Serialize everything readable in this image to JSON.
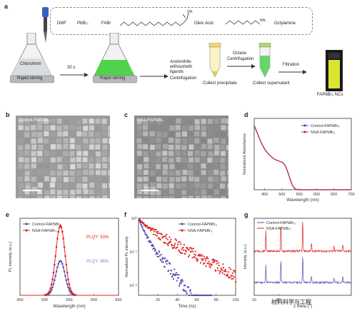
{
  "panel_a": {
    "label": "a",
    "reagents": [
      "DMF",
      "PbBr₂",
      "FABr",
      "Oleic Acid",
      "Octylamine"
    ],
    "oh_text": "OH",
    "nh2_text": "NH₂",
    "flask1_label": "Chloroform",
    "stir1_label": "Rapid stirring",
    "time_label": "30 s",
    "stir2_label": "Rapid stirring",
    "step1_text": [
      "Acetonitrile",
      "without/with",
      "ligands",
      "Centrifugation"
    ],
    "collect1": "Collect precipitate",
    "step2_text": [
      "Octane",
      "Centrifugation"
    ],
    "collect2": "Collect supernatant",
    "step3_text": "Filtration",
    "product": "FAPbBr₃ NCs"
  },
  "panel_b": {
    "label": "b",
    "caption": "Control-FAPbBr₃",
    "scale": "50 nm"
  },
  "panel_c": {
    "label": "c",
    "caption": "NSA-FAPbBr₃",
    "scale": "50 nm"
  },
  "labels": {
    "d": "d",
    "e": "e",
    "f": "f",
    "g": "g"
  },
  "plqy": {
    "nsa": "PLQY: 93%",
    "control": "PLQY: 46%"
  },
  "watermark": "材料科学与工程",
  "colors": {
    "control": "#5a4fb0",
    "nsa": "#e02525",
    "nsa_light": "#f07070",
    "control_light": "#8a80d0",
    "flask_green": "#52d24a",
    "vial_yellow": "#e6ea3a"
  },
  "chart_data": [
    {
      "type": "line",
      "panel": "d",
      "xlabel": "Wavelength (nm)",
      "ylabel": "Normalized Absorbance",
      "xlim": [
        420,
        700
      ],
      "ylim": [
        0,
        1
      ],
      "xticks": [
        450,
        500,
        550,
        600,
        650,
        700
      ],
      "series": [
        {
          "name": "Control-FAPbBr₃",
          "x": [
            420,
            430,
            440,
            450,
            460,
            470,
            480,
            490,
            495,
            500,
            505,
            510,
            515,
            520,
            525,
            530,
            535,
            540,
            545,
            550,
            600,
            650,
            700
          ],
          "y": [
            0.98,
            0.85,
            0.72,
            0.62,
            0.55,
            0.5,
            0.46,
            0.44,
            0.43,
            0.42,
            0.4,
            0.36,
            0.3,
            0.22,
            0.14,
            0.07,
            0.03,
            0.01,
            0.0,
            0.0,
            0.0,
            0.0,
            0.0
          ]
        },
        {
          "name": "NSA-FAPbBr₃",
          "x": [
            420,
            430,
            440,
            450,
            460,
            470,
            480,
            490,
            495,
            500,
            505,
            510,
            515,
            520,
            525,
            530,
            535,
            540,
            545,
            550,
            600,
            650,
            700
          ],
          "y": [
            0.98,
            0.85,
            0.72,
            0.62,
            0.55,
            0.5,
            0.46,
            0.44,
            0.43,
            0.42,
            0.4,
            0.36,
            0.3,
            0.22,
            0.14,
            0.07,
            0.03,
            0.01,
            0.0,
            0.0,
            0.0,
            0.0,
            0.0
          ]
        }
      ]
    },
    {
      "type": "line",
      "panel": "e",
      "xlabel": "Wavelength (nm)",
      "ylabel": "PL intensity (a.u.)",
      "xlim": [
        450,
        650
      ],
      "ylim": [
        0,
        1.05
      ],
      "xticks": [
        450,
        500,
        550,
        600,
        650
      ],
      "series": [
        {
          "name": "Control-FAPbBr₃",
          "peak": 532,
          "fwhm": 22,
          "amp": 0.47
        },
        {
          "name": "NSA-FAPbBr₃",
          "peak": 532,
          "fwhm": 22,
          "amp": 0.95
        }
      ]
    },
    {
      "type": "line",
      "panel": "f",
      "xlabel": "Time (ns)",
      "ylabel": "Normalized PL intensity",
      "xlim": [
        0,
        100
      ],
      "ylim_log": [
        0.005,
        1
      ],
      "xticks": [
        20,
        40,
        60,
        80,
        100
      ],
      "yticks": [
        "10⁰",
        "10⁻¹",
        "10⁻²"
      ],
      "series": [
        {
          "name": "Control-FAPbBr₃",
          "tau_fast": 4,
          "tau_slow": 12,
          "a_fast": 0.55,
          "end": 75
        },
        {
          "name": "NSA-FAPbBr₃",
          "tau_fast": 6,
          "tau_slow": 28,
          "a_fast": 0.35,
          "end": 100
        }
      ]
    },
    {
      "type": "line",
      "panel": "g",
      "xlabel": "2 theta (°)",
      "ylabel": "Intensity (a.u.)",
      "xlim": [
        10,
        50
      ],
      "xticks": [
        10,
        20
      ],
      "series": [
        {
          "name": "Control-FAPbBr₃",
          "peaks": [
            14.8,
            21.0,
            30.0,
            33.6,
            42.9,
            46.5
          ]
        },
        {
          "name": "NSA-FAPbBr₃",
          "peaks": [
            14.8,
            21.0,
            30.0,
            33.6,
            42.9,
            46.5
          ]
        }
      ]
    }
  ]
}
